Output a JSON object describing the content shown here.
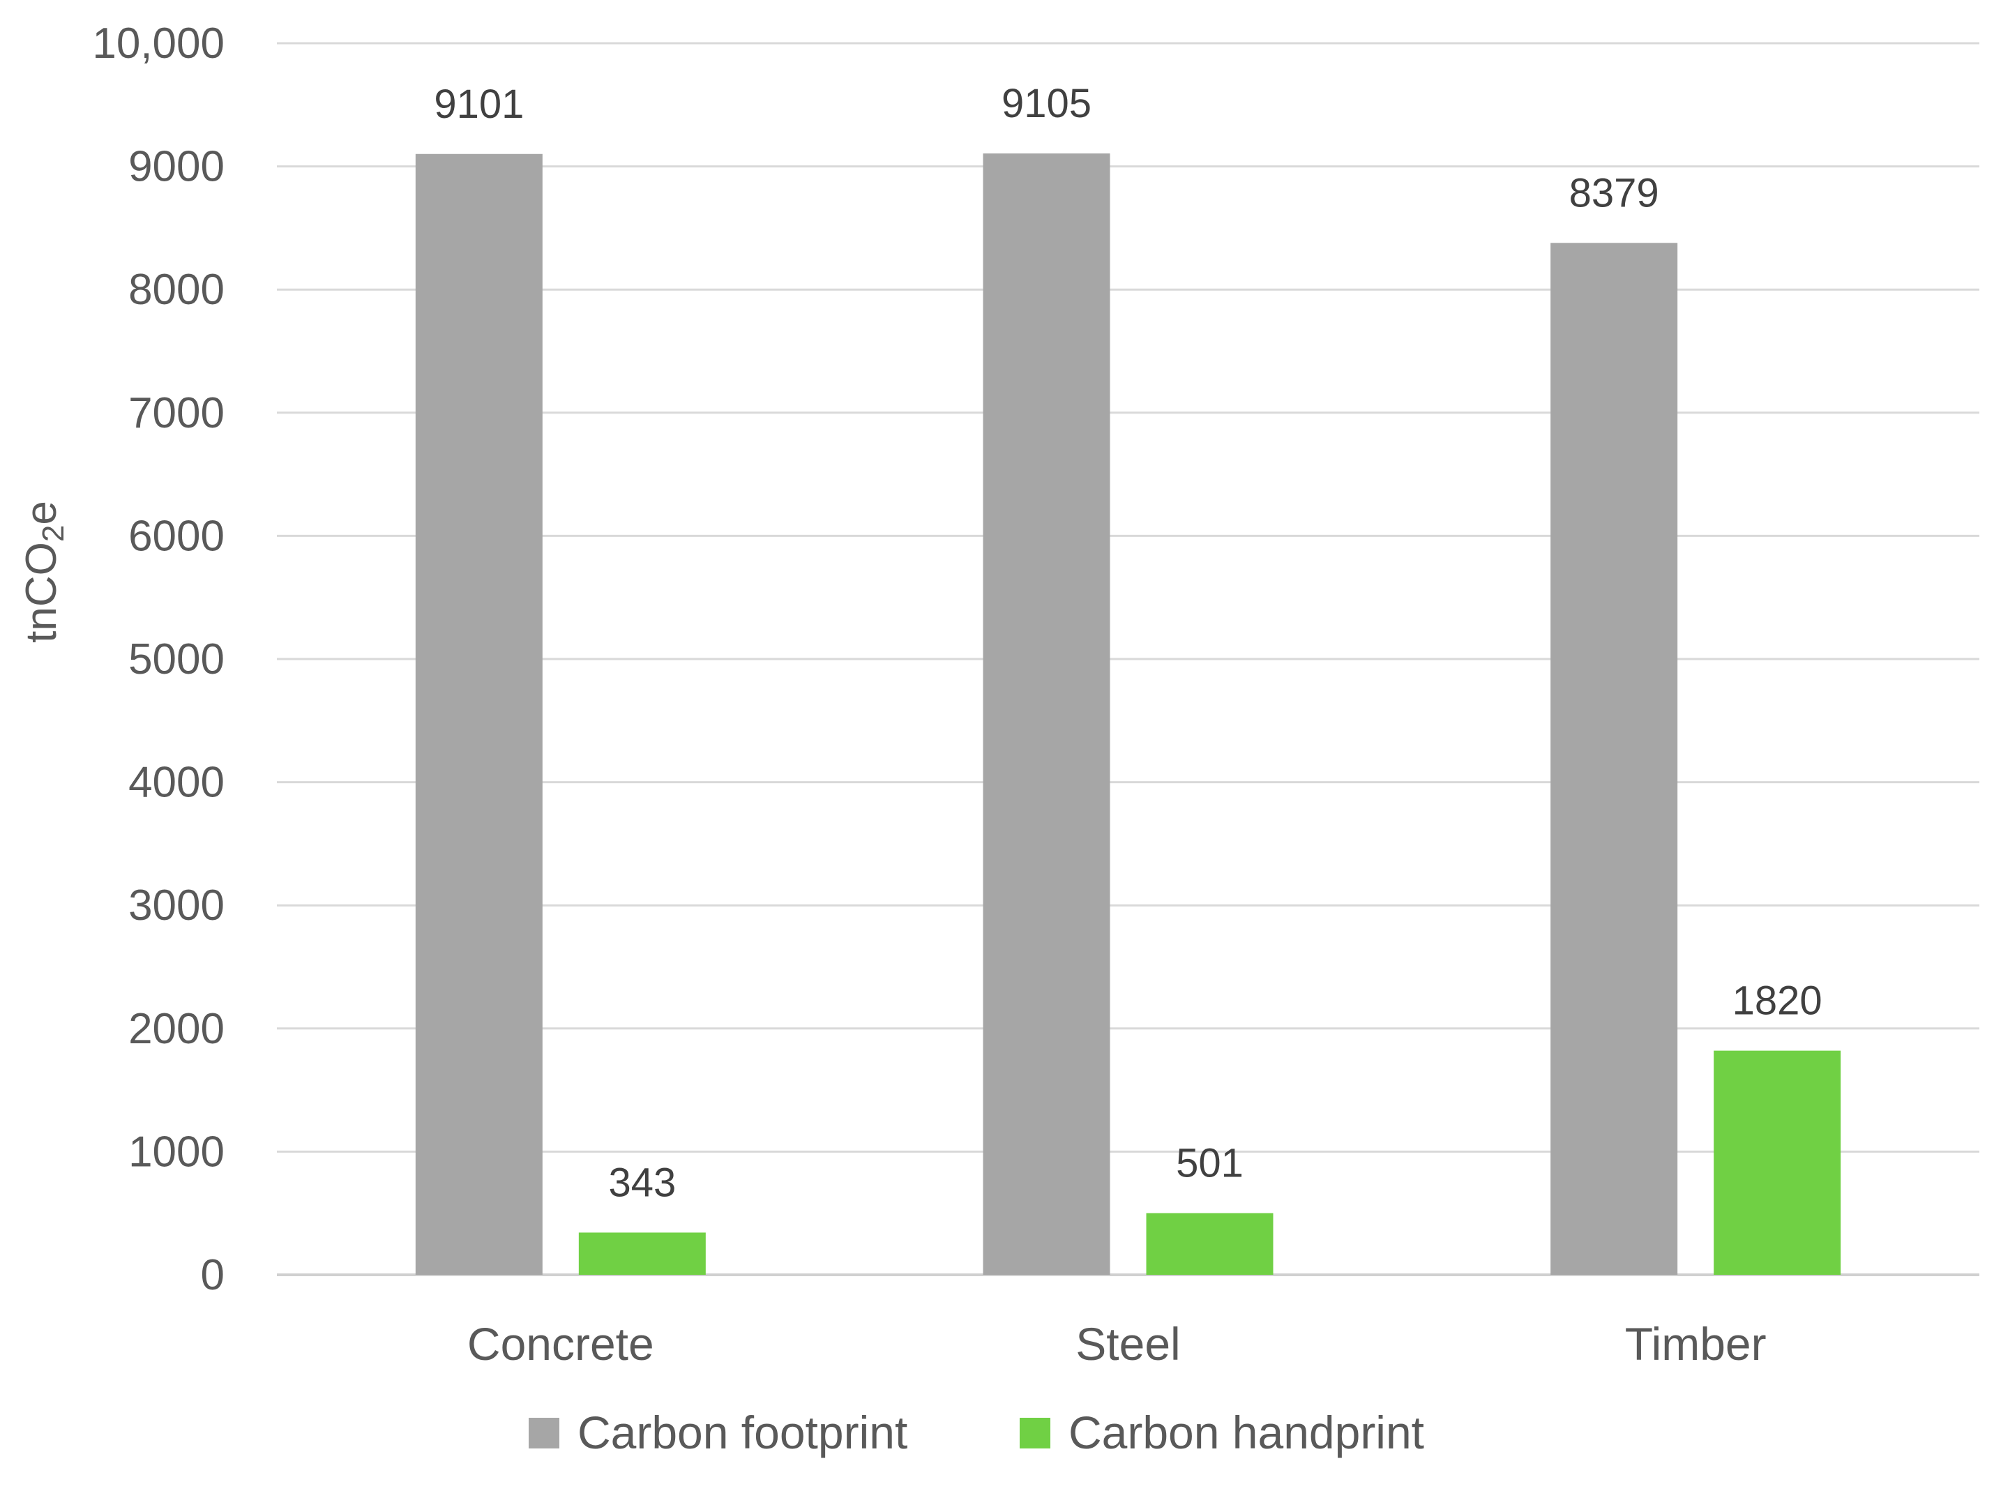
{
  "chart_data": {
    "type": "bar",
    "title": "",
    "xlabel": "",
    "ylabel": {
      "main": "tnCO",
      "sub": "2",
      "suffix": "e"
    },
    "ylim": [
      0,
      10000
    ],
    "y_ticks": [
      0,
      1000,
      2000,
      3000,
      4000,
      5000,
      6000,
      7000,
      8000,
      9000,
      10000
    ],
    "y_tick_labels": [
      "0",
      "1000",
      "2000",
      "3000",
      "4000",
      "5000",
      "6000",
      "7000",
      "8000",
      "9000",
      "10,000"
    ],
    "grid": true,
    "categories": [
      "Concrete",
      "Steel",
      "Timber"
    ],
    "series": [
      {
        "name": "Carbon footprint",
        "color": "#a6a6a6",
        "values": [
          9101,
          9105,
          8379
        ]
      },
      {
        "name": "Carbon handprint",
        "color": "#70d044",
        "values": [
          343,
          501,
          1820
        ]
      }
    ],
    "data_labels": true,
    "legend_position": "bottom"
  }
}
